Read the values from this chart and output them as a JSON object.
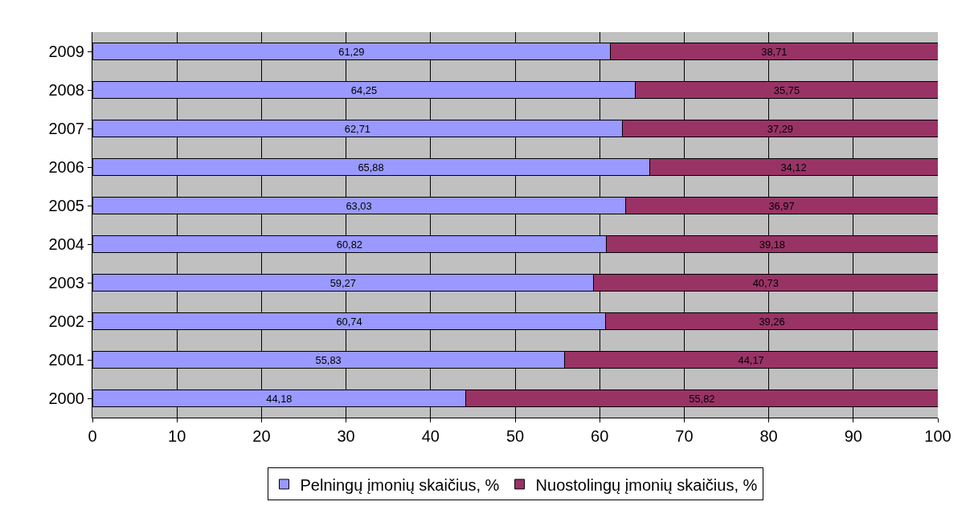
{
  "chart_data": {
    "type": "bar",
    "orientation": "horizontal",
    "stacked": true,
    "categories": [
      "2009",
      "2008",
      "2007",
      "2006",
      "2005",
      "2004",
      "2003",
      "2002",
      "2001",
      "2000"
    ],
    "series": [
      {
        "name": "Pelningų įmonių skaičius, %",
        "color": "#9999ff",
        "values": [
          61.29,
          64.25,
          62.71,
          65.88,
          63.03,
          60.82,
          59.27,
          60.74,
          55.83,
          44.18
        ],
        "value_labels": [
          "61,29",
          "64,25",
          "62,71",
          "65,88",
          "63,03",
          "60,82",
          "59,27",
          "60,74",
          "55,83",
          "44,18"
        ]
      },
      {
        "name": "Nuostolingų įmonių skaičius, %",
        "color": "#993366",
        "values": [
          38.71,
          35.75,
          37.29,
          34.12,
          36.97,
          39.18,
          40.73,
          39.26,
          44.17,
          55.82
        ],
        "value_labels": [
          "38,71",
          "35,75",
          "37,29",
          "34,12",
          "36,97",
          "39,18",
          "40,73",
          "39,26",
          "44,17",
          "55,82"
        ]
      }
    ],
    "xlim": [
      0,
      100
    ],
    "xticks": [
      0,
      10,
      20,
      30,
      40,
      50,
      60,
      70,
      80,
      90,
      100
    ],
    "grid": "x",
    "legend": "bottom"
  }
}
